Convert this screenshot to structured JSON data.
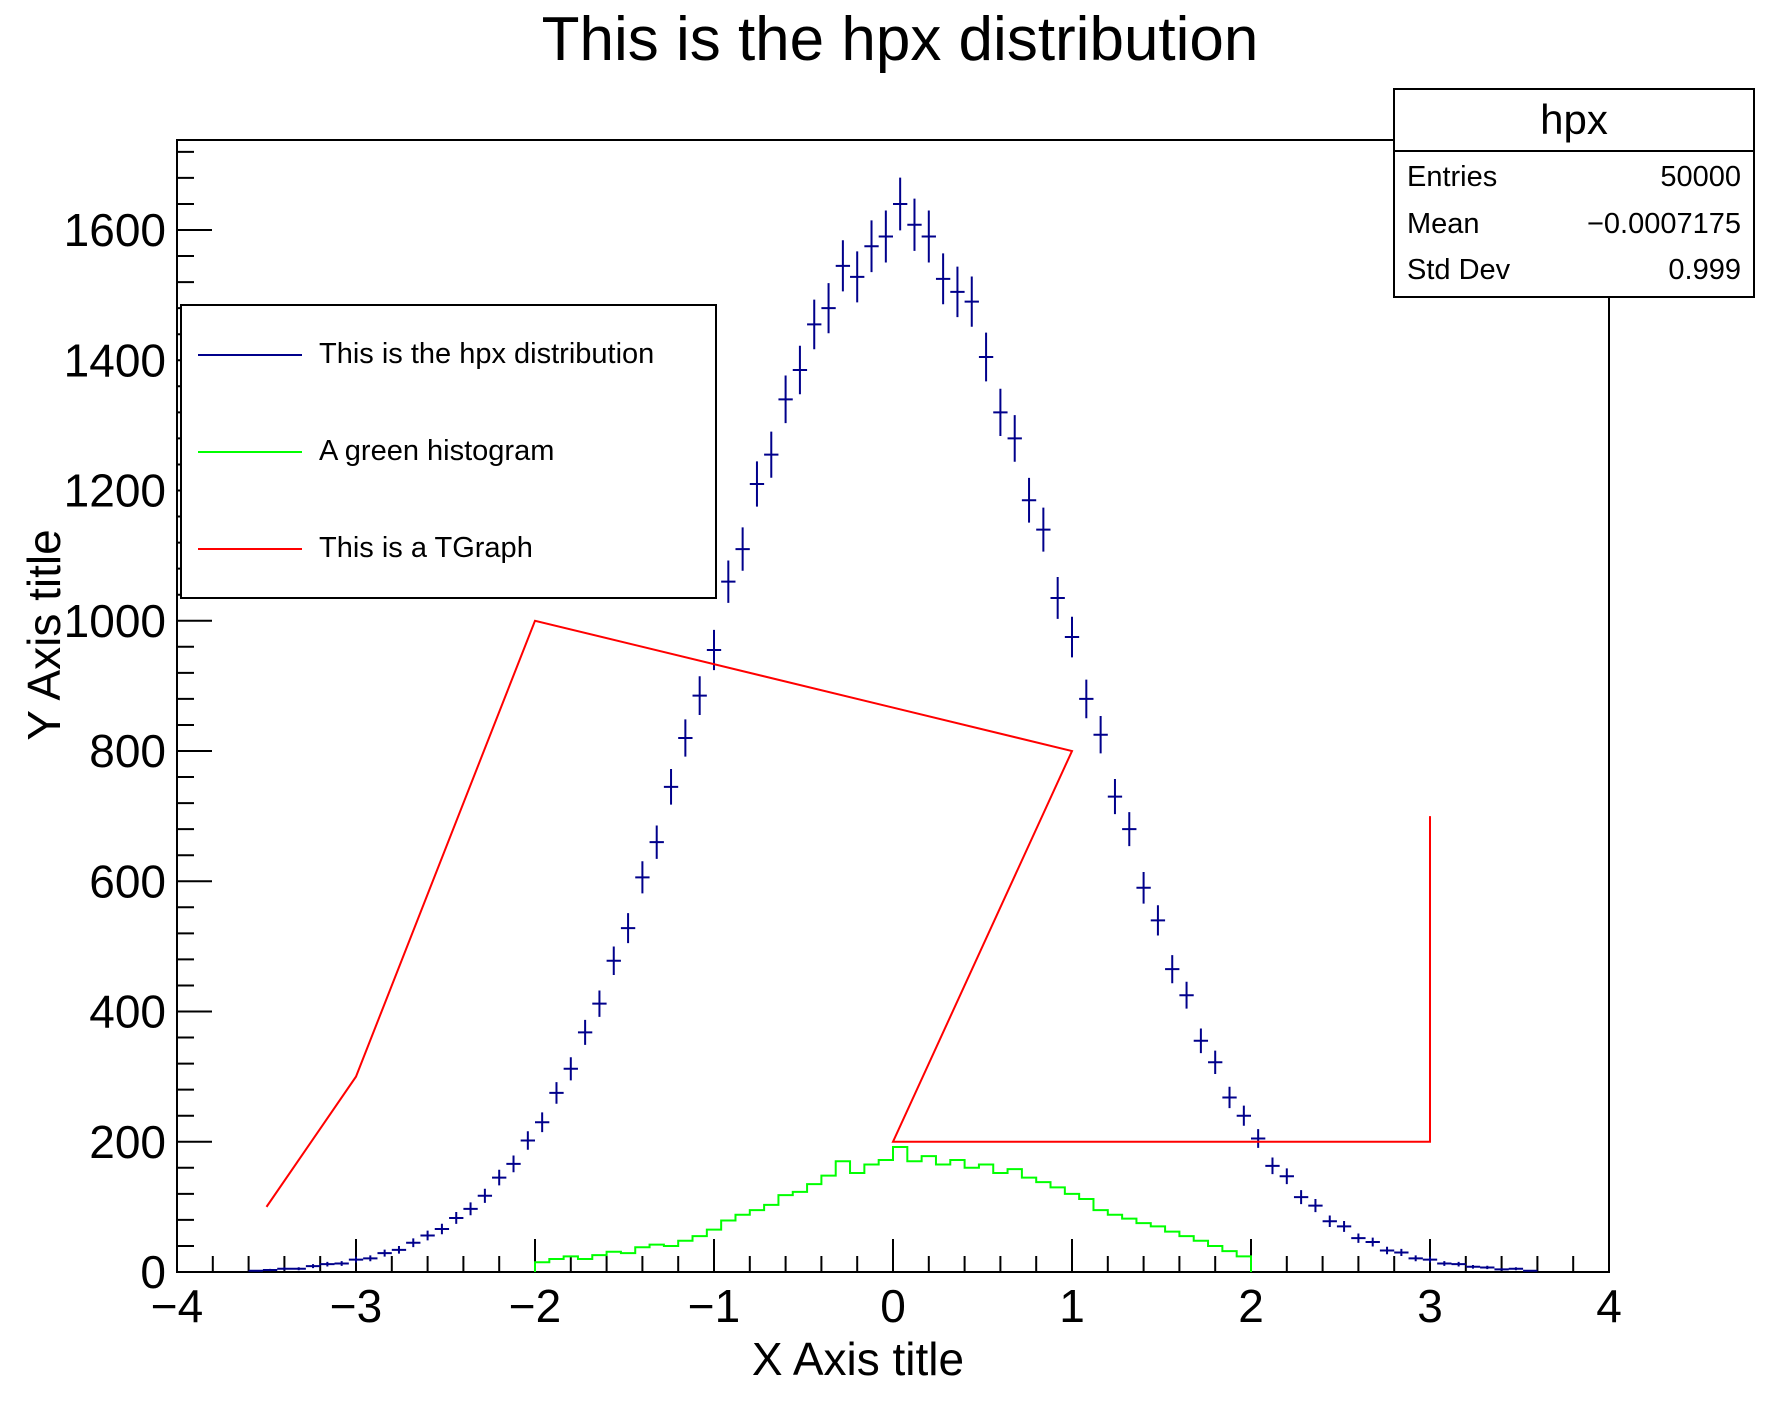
{
  "title": "This is the hpx distribution",
  "axes": {
    "x": {
      "title": "X Axis title",
      "range": [
        -4,
        4
      ],
      "tick_values": [
        -4,
        -3,
        -2,
        -1,
        0,
        1,
        2,
        3,
        4
      ],
      "tick_labels": [
        "−4",
        "−3",
        "−2",
        "−1",
        "0",
        "1",
        "2",
        "3",
        "4"
      ],
      "minor_step": 0.2
    },
    "y": {
      "title": "Y Axis title",
      "range": [
        0,
        1738
      ],
      "tick_values": [
        0,
        200,
        400,
        600,
        800,
        1000,
        1200,
        1400,
        1600
      ],
      "tick_labels": [
        "0",
        "200",
        "400",
        "600",
        "800",
        "1000",
        "1200",
        "1400",
        "1600"
      ],
      "minor_step": 40
    }
  },
  "legend": {
    "entries": [
      {
        "label": "This is the hpx distribution",
        "color": "#00008b"
      },
      {
        "label": "A green histogram",
        "color": "#00ff00"
      },
      {
        "label": "This is a TGraph",
        "color": "#ff0000"
      }
    ]
  },
  "stats": {
    "title": "hpx",
    "rows": [
      {
        "label": "Entries",
        "value": "50000"
      },
      {
        "label": "Mean",
        "value": "−0.0007175"
      },
      {
        "label": "Std Dev",
        "value": "0.999"
      }
    ]
  },
  "chart_data": {
    "type": "bar",
    "title": "This is the hpx distribution",
    "xlabel": "X Axis title",
    "ylabel": "Y Axis title",
    "xlim": [
      -4,
      4
    ],
    "ylim": [
      0,
      1738
    ],
    "grid": false,
    "legend_position": "upper-left",
    "series": [
      {
        "name": "This is the hpx distribution",
        "type": "errorbar-histogram",
        "color": "#00008b",
        "bin_start": -3.96,
        "bin_width": 0.08,
        "values": [
          0,
          0,
          0,
          0,
          0,
          2,
          3,
          5,
          5,
          9,
          12,
          13,
          19,
          21,
          29,
          34,
          45,
          56,
          66,
          83,
          97,
          117,
          145,
          166,
          202,
          230,
          275,
          312,
          368,
          412,
          478,
          528,
          606,
          660,
          745,
          820,
          885,
          955,
          1060,
          1110,
          1210,
          1255,
          1340,
          1385,
          1455,
          1480,
          1545,
          1528,
          1575,
          1590,
          1640,
          1608,
          1590,
          1525,
          1505,
          1490,
          1405,
          1320,
          1280,
          1185,
          1140,
          1035,
          975,
          880,
          825,
          730,
          680,
          590,
          540,
          465,
          425,
          355,
          322,
          268,
          240,
          205,
          163,
          147,
          115,
          102,
          78,
          70,
          52,
          46,
          33,
          30,
          21,
          19,
          13,
          12,
          8,
          7,
          4,
          5,
          2,
          0,
          0,
          0,
          0,
          0
        ]
      },
      {
        "name": "A green histogram",
        "type": "step-histogram",
        "color": "#00ff00",
        "bin_start": -1.96,
        "bin_width": 0.08,
        "values": [
          15,
          20,
          24,
          20,
          26,
          31,
          29,
          38,
          42,
          40,
          48,
          55,
          65,
          79,
          88,
          95,
          103,
          118,
          123,
          135,
          148,
          170,
          152,
          165,
          172,
          192,
          170,
          178,
          165,
          172,
          160,
          165,
          152,
          158,
          145,
          138,
          130,
          120,
          112,
          95,
          88,
          82,
          75,
          70,
          62,
          55,
          48,
          40,
          32,
          24
        ]
      },
      {
        "name": "This is a TGraph",
        "type": "line",
        "color": "#ff0000",
        "points": [
          [
            -3.5,
            100
          ],
          [
            -3,
            300
          ],
          [
            -2,
            1000
          ],
          [
            1,
            800
          ],
          [
            0,
            200
          ],
          [
            3,
            200
          ],
          [
            3,
            700
          ]
        ]
      }
    ]
  }
}
